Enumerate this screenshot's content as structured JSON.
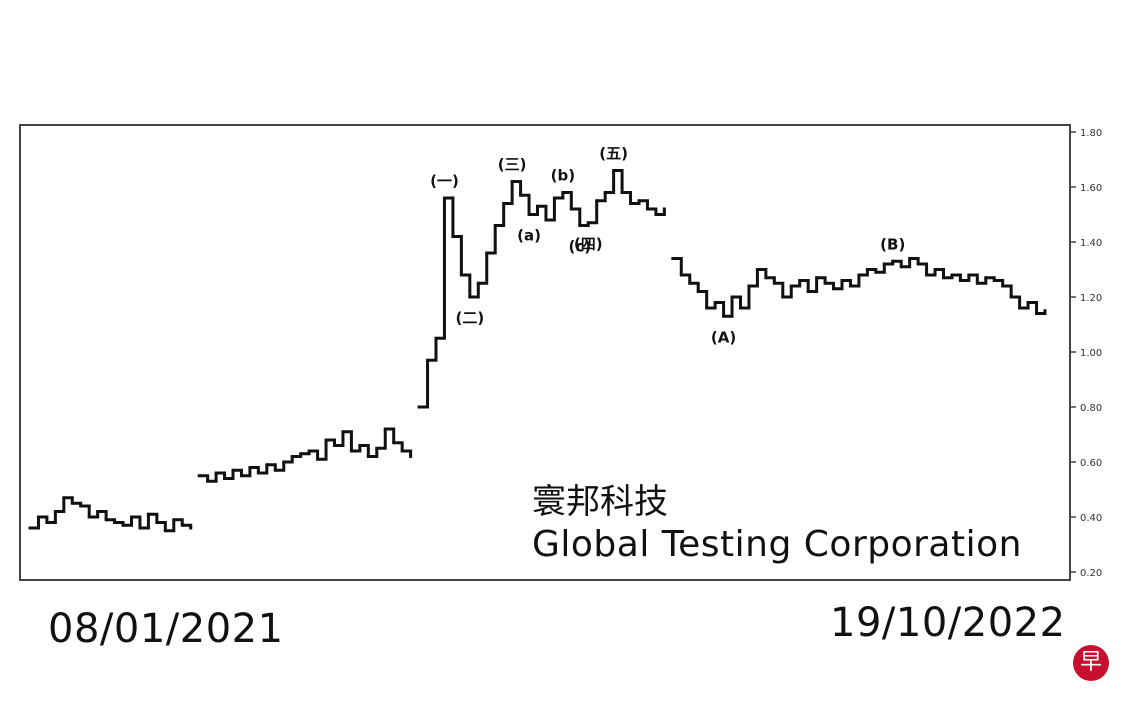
{
  "chart_data": {
    "type": "line",
    "title": "",
    "stock_name_cn": "寰邦科技",
    "stock_name_en": "Global Testing Corporation",
    "date_start": "08/01/2021",
    "date_end": "19/10/2022",
    "y_ticks": [
      "1.80",
      "1.60",
      "1.40",
      "1.20",
      "1.00",
      "0.80",
      "0.60",
      "0.40",
      "0.20"
    ],
    "ylim": [
      0.2,
      1.8
    ],
    "grid": false,
    "series": [
      {
        "values": [
          0.36,
          0.4,
          0.38,
          0.42,
          0.47,
          0.45,
          0.44,
          0.4,
          0.42,
          0.39,
          0.38,
          0.37,
          0.4,
          0.36,
          0.41,
          0.38,
          0.35,
          0.39,
          0.37,
          0.36,
          0.55,
          0.53,
          0.56,
          0.54,
          0.57,
          0.55,
          0.58,
          0.56,
          0.59,
          0.57,
          0.6,
          0.62,
          0.63,
          0.64,
          0.61,
          0.68,
          0.66,
          0.71,
          0.64,
          0.66,
          0.62,
          0.65,
          0.72,
          0.67,
          0.64,
          0.62,
          0.8,
          0.97,
          1.05,
          1.56,
          1.42,
          1.28,
          1.2,
          1.25,
          1.36,
          1.46,
          1.54,
          1.62,
          1.57,
          1.5,
          1.53,
          1.48,
          1.56,
          1.58,
          1.52,
          1.46,
          1.47,
          1.55,
          1.58,
          1.66,
          1.58,
          1.54,
          1.55,
          1.52,
          1.5,
          1.52,
          1.34,
          1.28,
          1.25,
          1.22,
          1.16,
          1.18,
          1.13,
          1.2,
          1.16,
          1.24,
          1.3,
          1.27,
          1.25,
          1.2,
          1.24,
          1.26,
          1.22,
          1.27,
          1.25,
          1.23,
          1.26,
          1.24,
          1.28,
          1.3,
          1.29,
          1.32,
          1.33,
          1.31,
          1.34,
          1.32,
          1.28,
          1.3,
          1.27,
          1.28,
          1.26,
          1.28,
          1.25,
          1.27,
          1.26,
          1.24,
          1.2,
          1.16,
          1.18,
          1.14,
          1.15
        ]
      }
    ],
    "annotations": [
      {
        "label": "(一)",
        "at_index": 49,
        "position": "above"
      },
      {
        "label": "(二)",
        "at_index": 52,
        "position": "below"
      },
      {
        "label": "(三)",
        "at_index": 57,
        "position": "above"
      },
      {
        "label": "(a)",
        "at_index": 59,
        "position": "below"
      },
      {
        "label": "(b)",
        "at_index": 63,
        "position": "above"
      },
      {
        "label": "(c)",
        "at_index": 65,
        "position": "below"
      },
      {
        "label": "(四)",
        "at_index": 66,
        "position": "below"
      },
      {
        "label": "(五)",
        "at_index": 69,
        "position": "above"
      },
      {
        "label": "(A)",
        "at_index": 82,
        "position": "below"
      },
      {
        "label": "(B)",
        "at_index": 102,
        "position": "above"
      }
    ]
  },
  "logo": {
    "text": "早"
  }
}
